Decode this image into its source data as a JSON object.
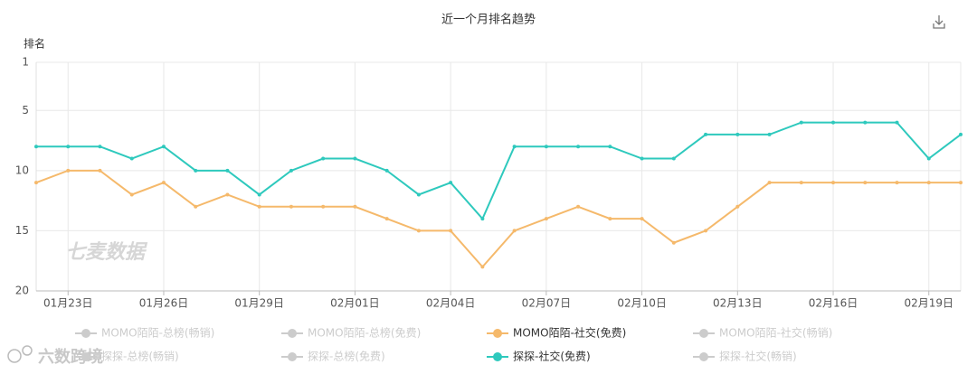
{
  "chart_data": {
    "type": "line",
    "title": "近一个月排名趋势",
    "y_label": "排名",
    "watermark": "七麦数据",
    "corner_watermark": "六数跨境",
    "y_inverted": true,
    "grid": true,
    "ylim": [
      1,
      20
    ],
    "yticks": [
      1,
      5,
      10,
      15,
      20
    ],
    "categories": [
      null,
      "01月23日",
      null,
      null,
      "01月26日",
      null,
      null,
      "01月29日",
      null,
      null,
      "02月01日",
      null,
      null,
      "02月04日",
      null,
      null,
      "02月07日",
      null,
      null,
      "02月10日",
      null,
      null,
      "02月13日",
      null,
      null,
      "02月16日",
      null,
      null,
      "02月19日",
      null
    ],
    "series": [
      {
        "name": "MOMO陌陌-总榜(畅销)",
        "color": "#cccccc",
        "values": [
          null,
          null,
          null,
          null,
          null,
          null,
          null,
          null,
          null,
          null,
          null,
          null,
          null,
          null,
          null,
          null,
          null,
          null,
          null,
          null,
          null,
          null,
          null,
          null,
          null,
          null,
          null,
          null,
          null,
          null
        ]
      },
      {
        "name": "MOMO陌陌-总榜(免费)",
        "color": "#cccccc",
        "values": [
          null,
          null,
          null,
          null,
          null,
          null,
          null,
          null,
          null,
          null,
          null,
          null,
          null,
          null,
          null,
          null,
          null,
          null,
          null,
          null,
          null,
          null,
          null,
          null,
          null,
          null,
          null,
          null,
          null,
          null
        ]
      },
      {
        "name": "MOMO陌陌-社交(免费)",
        "color": "#f5b96b",
        "values": [
          11,
          10,
          10,
          12,
          11,
          13,
          12,
          13,
          13,
          13,
          13,
          14,
          15,
          15,
          18,
          15,
          14,
          13,
          14,
          14,
          16,
          15,
          13,
          11,
          11,
          11,
          11,
          11,
          11,
          11
        ]
      },
      {
        "name": "MOMO陌陌-社交(畅销)",
        "color": "#cccccc",
        "values": [
          null,
          null,
          null,
          null,
          null,
          null,
          null,
          null,
          null,
          null,
          null,
          null,
          null,
          null,
          null,
          null,
          null,
          null,
          null,
          null,
          null,
          null,
          null,
          null,
          null,
          null,
          null,
          null,
          null,
          null
        ]
      },
      {
        "name": "探探-总榜(畅销)",
        "color": "#cccccc",
        "values": [
          null,
          null,
          null,
          null,
          null,
          null,
          null,
          null,
          null,
          null,
          null,
          null,
          null,
          null,
          null,
          null,
          null,
          null,
          null,
          null,
          null,
          null,
          null,
          null,
          null,
          null,
          null,
          null,
          null,
          null
        ]
      },
      {
        "name": "探探-总榜(免费)",
        "color": "#cccccc",
        "values": [
          null,
          null,
          null,
          null,
          null,
          null,
          null,
          null,
          null,
          null,
          null,
          null,
          null,
          null,
          null,
          null,
          null,
          null,
          null,
          null,
          null,
          null,
          null,
          null,
          null,
          null,
          null,
          null,
          null,
          null
        ]
      },
      {
        "name": "探探-社交(免费)",
        "color": "#2ec9bd",
        "values": [
          8,
          8,
          8,
          9,
          8,
          10,
          10,
          12,
          10,
          9,
          9,
          10,
          12,
          11,
          14,
          8,
          8,
          8,
          8,
          9,
          9,
          7,
          7,
          7,
          6,
          6,
          6,
          6,
          9,
          7
        ]
      },
      {
        "name": "探探-社交(畅销)",
        "color": "#cccccc",
        "values": [
          null,
          null,
          null,
          null,
          null,
          null,
          null,
          null,
          null,
          null,
          null,
          null,
          null,
          null,
          null,
          null,
          null,
          null,
          null,
          null,
          null,
          null,
          null,
          null,
          null,
          null,
          null,
          null,
          null,
          null
        ]
      }
    ]
  }
}
